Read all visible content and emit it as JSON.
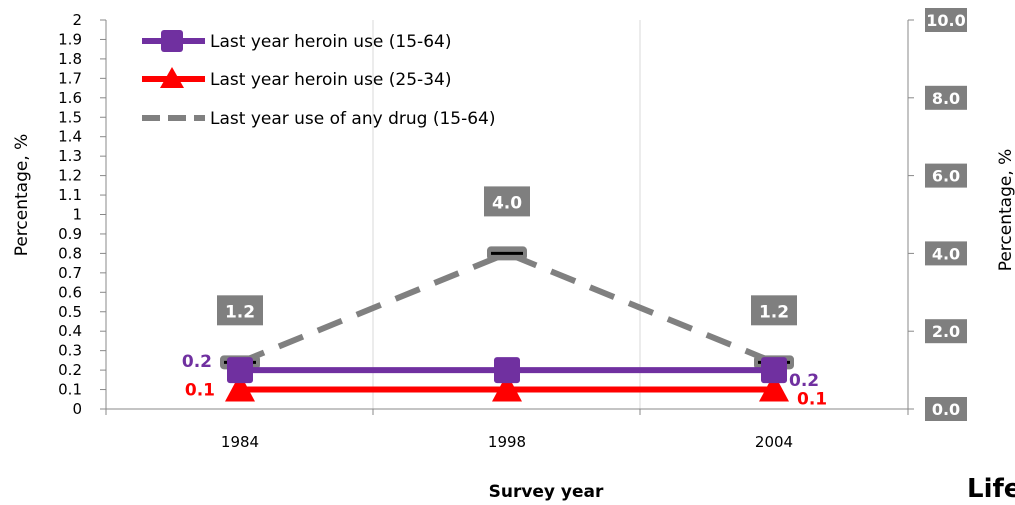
{
  "chart_data": {
    "type": "line",
    "xlabel": "Survey year",
    "ylabel": "Percentage, %",
    "y2label": "Percentage, %",
    "categories": [
      "1984",
      "1998",
      "2004"
    ],
    "ylim": [
      0,
      2
    ],
    "y2lim": [
      0,
      10
    ],
    "yticks": [
      "0",
      "0.1",
      "0.2",
      "0.3",
      "0.4",
      "0.5",
      "0.6",
      "0.7",
      "0.8",
      "0.9",
      "1",
      "1.1",
      "1.2",
      "1.3",
      "1.4",
      "1.5",
      "1.6",
      "1.7",
      "1.8",
      "1.9",
      "2"
    ],
    "y2ticks": [
      "0.0",
      "2.0",
      "4.0",
      "6.0",
      "8.0",
      "10.0"
    ],
    "grid": true,
    "legend_position": "top-left",
    "series": [
      {
        "name": "Last year heroin use (15-64)",
        "axis": "left",
        "values": [
          0.2,
          0.2,
          0.2
        ],
        "color": "#7030a0",
        "marker": "square",
        "style": "solid",
        "labels": [
          "0.2",
          "",
          "0.2"
        ]
      },
      {
        "name": "Last year heroin use (25-34)",
        "axis": "left",
        "values": [
          0.1,
          0.1,
          0.1
        ],
        "color": "#ff0000",
        "marker": "triangle",
        "style": "solid",
        "labels": [
          "0.1",
          "",
          "0.1"
        ]
      },
      {
        "name": "Last year use of any drug (15-64)",
        "axis": "right",
        "values": [
          1.2,
          4.0,
          1.2
        ],
        "color": "#808080",
        "marker": "dash",
        "style": "dashed",
        "labels": [
          "1.2",
          "4.0",
          "1.2"
        ]
      }
    ],
    "cropped_text": "Life"
  }
}
